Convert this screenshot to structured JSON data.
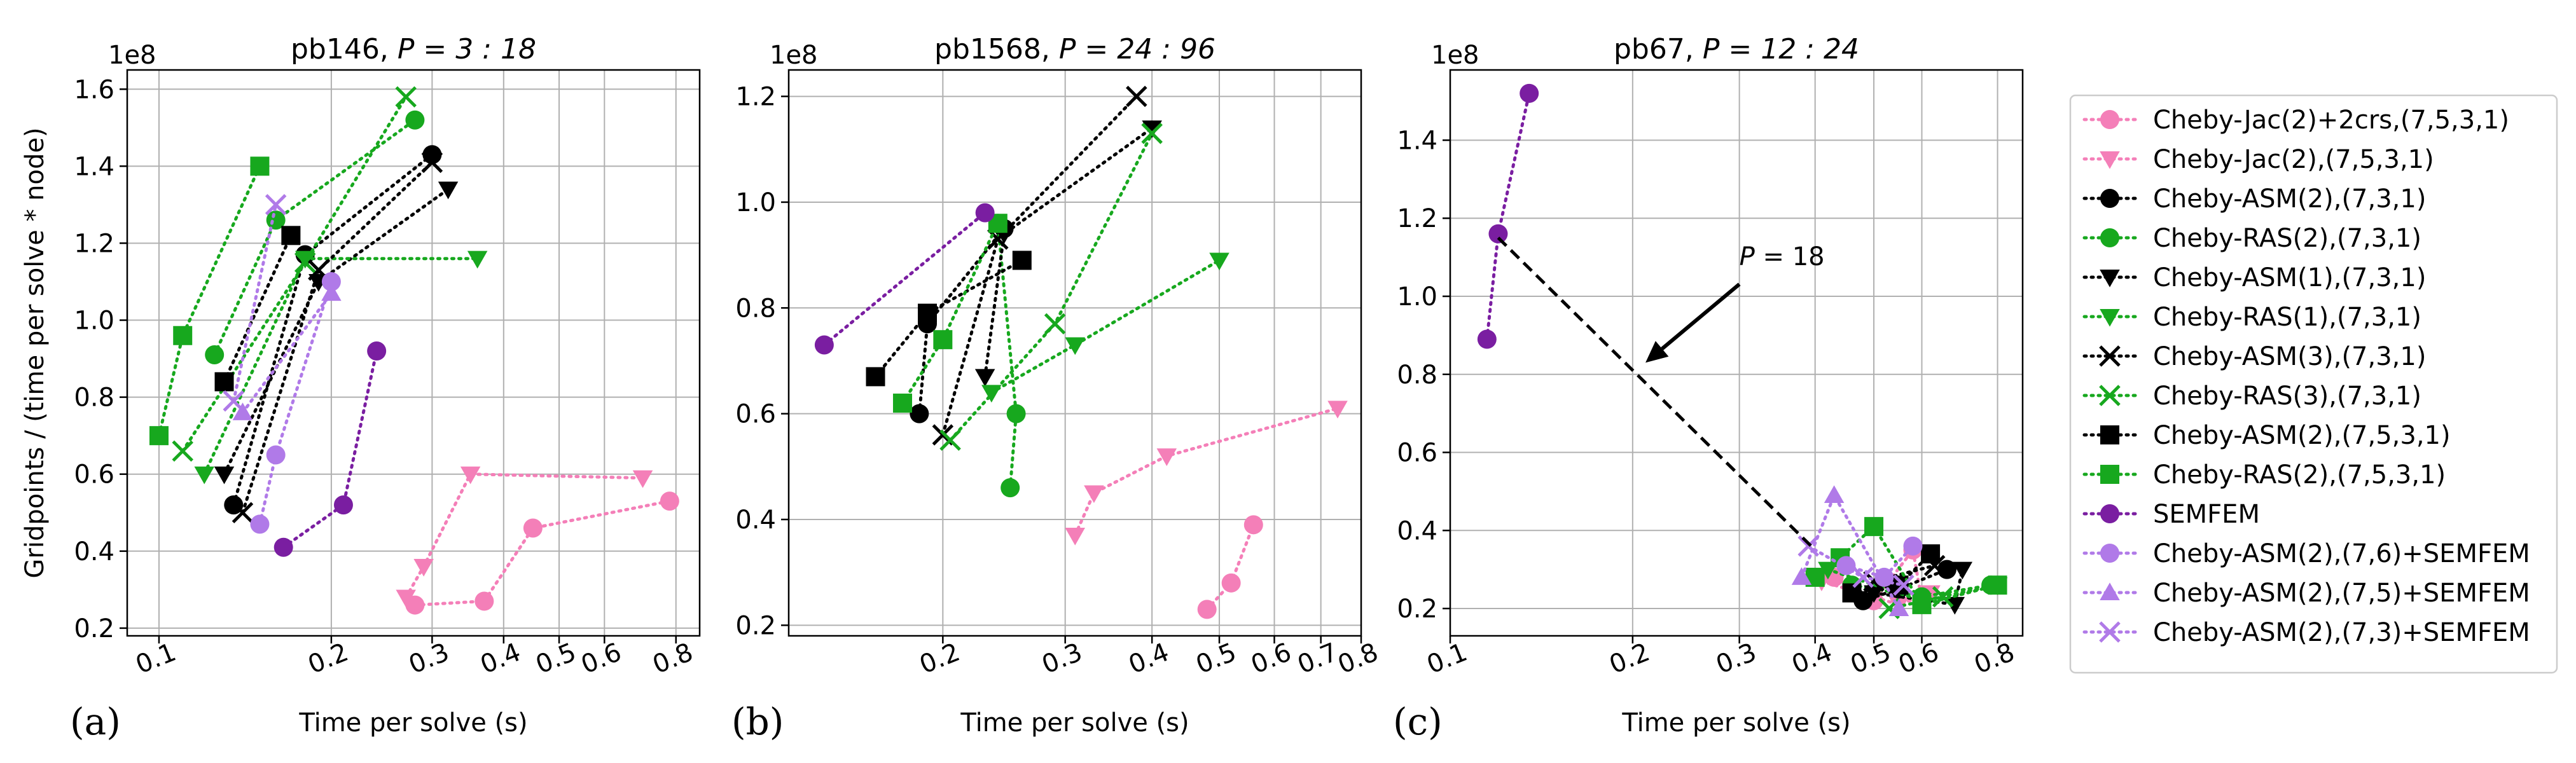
{
  "chart_data": [
    {
      "type": "scatter",
      "panel_tag": "(a)",
      "title": "pb146, P = 3 : 18",
      "title_main": "pb146, ",
      "title_math": "P = 3 : 18",
      "xlabel": "Time per solve (s)",
      "ylabel": "Gridpoints / (time per solve * node)",
      "y_multiplier": "1e8",
      "xscale": "log",
      "xlim": [
        0.088,
        0.88
      ],
      "ylim": [
        0.18,
        1.65
      ],
      "xticks": [
        {
          "value": 0.1,
          "label": "0.1"
        },
        {
          "value": 0.2,
          "label": "0.2"
        },
        {
          "value": 0.3,
          "label": "0.3"
        },
        {
          "value": 0.4,
          "label": "0.4"
        },
        {
          "value": 0.5,
          "label": "0.5"
        },
        {
          "value": 0.6,
          "label": "0.6"
        },
        {
          "value": 0.8,
          "label": "0.8"
        }
      ],
      "yticks": [
        {
          "value": 0.2,
          "label": "0.2"
        },
        {
          "value": 0.4,
          "label": "0.4"
        },
        {
          "value": 0.6,
          "label": "0.6"
        },
        {
          "value": 0.8,
          "label": "0.8"
        },
        {
          "value": 1.0,
          "label": "1.0"
        },
        {
          "value": 1.2,
          "label": "1.2"
        },
        {
          "value": 1.4,
          "label": "1.4"
        },
        {
          "value": 1.6,
          "label": "1.6"
        }
      ],
      "grid": true,
      "series": [
        {
          "key": "jac2crs",
          "points": [
            [
              0.28,
              0.26
            ],
            [
              0.37,
              0.27
            ],
            [
              0.45,
              0.46
            ],
            [
              0.78,
              0.53
            ]
          ]
        },
        {
          "key": "jac2",
          "points": [
            [
              0.27,
              0.28
            ],
            [
              0.29,
              0.36
            ],
            [
              0.35,
              0.6
            ],
            [
              0.7,
              0.59
            ]
          ]
        },
        {
          "key": "asm2_731",
          "points": [
            [
              0.135,
              0.52
            ],
            [
              0.18,
              1.17
            ],
            [
              0.3,
              1.43
            ]
          ]
        },
        {
          "key": "ras2_731",
          "points": [
            [
              0.125,
              0.91
            ],
            [
              0.16,
              1.26
            ],
            [
              0.28,
              1.52
            ]
          ]
        },
        {
          "key": "asm1_731",
          "points": [
            [
              0.13,
              0.6
            ],
            [
              0.19,
              1.1
            ],
            [
              0.32,
              1.34
            ]
          ]
        },
        {
          "key": "ras1_731",
          "points": [
            [
              0.12,
              0.6
            ],
            [
              0.18,
              1.16
            ],
            [
              0.36,
              1.16
            ]
          ]
        },
        {
          "key": "asm3_731",
          "points": [
            [
              0.14,
              0.5
            ],
            [
              0.19,
              1.13
            ],
            [
              0.3,
              1.41
            ]
          ]
        },
        {
          "key": "ras3_731",
          "points": [
            [
              0.11,
              0.66
            ],
            [
              0.18,
              1.15
            ],
            [
              0.27,
              1.58
            ]
          ]
        },
        {
          "key": "asm2_7531",
          "points": [
            [
              0.13,
              0.84
            ],
            [
              0.17,
              1.22
            ]
          ]
        },
        {
          "key": "ras2_7531",
          "points": [
            [
              0.1,
              0.7
            ],
            [
              0.11,
              0.96
            ],
            [
              0.15,
              1.4
            ]
          ]
        },
        {
          "key": "semfem",
          "points": [
            [
              0.165,
              0.41
            ],
            [
              0.21,
              0.52
            ],
            [
              0.24,
              0.92
            ]
          ]
        },
        {
          "key": "asm2_76_sem",
          "points": [
            [
              0.15,
              0.47
            ],
            [
              0.16,
              0.65
            ],
            [
              0.2,
              1.1
            ]
          ]
        },
        {
          "key": "asm2_75_sem",
          "points": [
            [
              0.14,
              0.76
            ],
            [
              0.2,
              1.07
            ]
          ]
        },
        {
          "key": "asm2_73_sem",
          "points": [
            [
              0.135,
              0.79
            ],
            [
              0.16,
              1.3
            ]
          ]
        }
      ]
    },
    {
      "type": "scatter",
      "panel_tag": "(b)",
      "title": "pb1568, P = 24 : 96",
      "title_main": "pb1568, ",
      "title_math": "P = 24 : 96",
      "xlabel": "Time per solve (s)",
      "ylabel": "",
      "y_multiplier": "1e8",
      "xscale": "log",
      "xlim": [
        0.12,
        0.8
      ],
      "ylim": [
        0.18,
        1.25
      ],
      "xticks": [
        {
          "value": 0.2,
          "label": "0.2"
        },
        {
          "value": 0.3,
          "label": "0.3"
        },
        {
          "value": 0.4,
          "label": "0.4"
        },
        {
          "value": 0.5,
          "label": "0.5"
        },
        {
          "value": 0.6,
          "label": "0.6"
        },
        {
          "value": 0.7,
          "label": "0.7"
        },
        {
          "value": 0.8,
          "label": "0.8"
        }
      ],
      "yticks": [
        {
          "value": 0.2,
          "label": "0.2"
        },
        {
          "value": 0.4,
          "label": "0.4"
        },
        {
          "value": 0.6,
          "label": "0.6"
        },
        {
          "value": 0.8,
          "label": "0.8"
        },
        {
          "value": 1.0,
          "label": "1.0"
        },
        {
          "value": 1.2,
          "label": "1.2"
        }
      ],
      "grid": true,
      "series": [
        {
          "key": "jac2crs",
          "points": [
            [
              0.48,
              0.23
            ],
            [
              0.52,
              0.28
            ],
            [
              0.56,
              0.39
            ]
          ]
        },
        {
          "key": "jac2",
          "points": [
            [
              0.31,
              0.37
            ],
            [
              0.33,
              0.45
            ],
            [
              0.42,
              0.52
            ],
            [
              0.74,
              0.61
            ]
          ]
        },
        {
          "key": "asm2_731",
          "points": [
            [
              0.185,
              0.6
            ],
            [
              0.19,
              0.77
            ],
            [
              0.245,
              0.95
            ]
          ]
        },
        {
          "key": "ras2_731",
          "points": [
            [
              0.25,
              0.46
            ],
            [
              0.255,
              0.6
            ],
            [
              0.24,
              0.96
            ]
          ]
        },
        {
          "key": "asm1_731",
          "points": [
            [
              0.23,
              0.67
            ],
            [
              0.245,
              0.94
            ],
            [
              0.4,
              1.14
            ]
          ]
        },
        {
          "key": "ras1_731",
          "points": [
            [
              0.235,
              0.64
            ],
            [
              0.31,
              0.73
            ],
            [
              0.5,
              0.89
            ]
          ]
        },
        {
          "key": "asm3_731",
          "points": [
            [
              0.2,
              0.56
            ],
            [
              0.24,
              0.93
            ],
            [
              0.38,
              1.2
            ]
          ]
        },
        {
          "key": "ras3_731",
          "points": [
            [
              0.205,
              0.55
            ],
            [
              0.29,
              0.77
            ],
            [
              0.4,
              1.13
            ]
          ]
        },
        {
          "key": "asm2_7531",
          "points": [
            [
              0.16,
              0.67
            ],
            [
              0.19,
              0.79
            ],
            [
              0.26,
              0.89
            ]
          ]
        },
        {
          "key": "ras2_7531",
          "points": [
            [
              0.175,
              0.62
            ],
            [
              0.2,
              0.74
            ],
            [
              0.24,
              0.96
            ]
          ]
        },
        {
          "key": "semfem",
          "points": [
            [
              0.135,
              0.73
            ],
            [
              0.23,
              0.98
            ]
          ]
        },
        {
          "key": "asm2_76_sem",
          "points": []
        },
        {
          "key": "asm2_75_sem",
          "points": []
        },
        {
          "key": "asm2_73_sem",
          "points": []
        }
      ]
    },
    {
      "type": "scatter",
      "panel_tag": "(c)",
      "title": "pb67, P = 12 : 24",
      "title_main": "pb67, ",
      "title_math": "P = 12 : 24",
      "xlabel": "Time per solve (s)",
      "ylabel": "",
      "y_multiplier": "1e8",
      "xscale": "log",
      "xlim": [
        0.1,
        0.88
      ],
      "ylim": [
        0.13,
        1.58
      ],
      "xticks": [
        {
          "value": 0.1,
          "label": "0.1"
        },
        {
          "value": 0.2,
          "label": "0.2"
        },
        {
          "value": 0.3,
          "label": "0.3"
        },
        {
          "value": 0.4,
          "label": "0.4"
        },
        {
          "value": 0.5,
          "label": "0.5"
        },
        {
          "value": 0.6,
          "label": "0.6"
        },
        {
          "value": 0.8,
          "label": "0.8"
        }
      ],
      "yticks": [
        {
          "value": 0.2,
          "label": "0.2"
        },
        {
          "value": 0.4,
          "label": "0.4"
        },
        {
          "value": 0.6,
          "label": "0.6"
        },
        {
          "value": 0.8,
          "label": "0.8"
        },
        {
          "value": 1.0,
          "label": "1.0"
        },
        {
          "value": 1.2,
          "label": "1.2"
        },
        {
          "value": 1.4,
          "label": "1.4"
        }
      ],
      "grid": true,
      "annotation": {
        "text_main": "P",
        "text_rest": " = 18",
        "text_xy": [
          0.3,
          1.08
        ],
        "arrow_to": [
          0.21,
          0.83
        ],
        "dashed_line": [
          [
            0.12,
            1.15
          ],
          [
            0.4,
            0.35
          ]
        ]
      },
      "series": [
        {
          "key": "jac2crs",
          "points": [
            [
              0.43,
              0.28
            ],
            [
              0.5,
              0.22
            ],
            [
              0.58,
              0.35
            ],
            [
              0.6,
              0.22
            ]
          ]
        },
        {
          "key": "jac2",
          "points": [
            [
              0.41,
              0.27
            ],
            [
              0.55,
              0.21
            ],
            [
              0.62,
              0.24
            ]
          ]
        },
        {
          "key": "asm2_731",
          "points": [
            [
              0.48,
              0.22
            ],
            [
              0.55,
              0.25
            ],
            [
              0.66,
              0.3
            ]
          ]
        },
        {
          "key": "ras2_731",
          "points": [
            [
              0.46,
              0.26
            ],
            [
              0.6,
              0.23
            ],
            [
              0.78,
              0.26
            ]
          ]
        },
        {
          "key": "asm1_731",
          "points": [
            [
              0.5,
              0.24
            ],
            [
              0.68,
              0.21
            ],
            [
              0.7,
              0.3
            ]
          ]
        },
        {
          "key": "ras1_731",
          "points": [
            [
              0.42,
              0.3
            ],
            [
              0.6,
              0.22
            ],
            [
              0.8,
              0.26
            ]
          ]
        },
        {
          "key": "asm3_731",
          "points": [
            [
              0.5,
              0.27
            ],
            [
              0.63,
              0.31
            ]
          ]
        },
        {
          "key": "ras3_731",
          "points": [
            [
              0.53,
              0.2
            ],
            [
              0.65,
              0.23
            ]
          ]
        },
        {
          "key": "asm2_7531",
          "points": [
            [
              0.46,
              0.24
            ],
            [
              0.55,
              0.26
            ],
            [
              0.62,
              0.34
            ]
          ]
        },
        {
          "key": "ras2_7531",
          "points": [
            [
              0.4,
              0.28
            ],
            [
              0.44,
              0.33
            ],
            [
              0.5,
              0.41
            ],
            [
              0.6,
              0.21
            ],
            [
              0.8,
              0.26
            ]
          ]
        },
        {
          "key": "semfem",
          "points": [
            [
              0.115,
              0.89
            ],
            [
              0.12,
              1.16
            ],
            [
              0.135,
              1.52
            ]
          ]
        },
        {
          "key": "asm2_76_sem",
          "points": [
            [
              0.45,
              0.31
            ],
            [
              0.52,
              0.28
            ],
            [
              0.58,
              0.36
            ]
          ]
        },
        {
          "key": "asm2_75_sem",
          "points": [
            [
              0.38,
              0.28
            ],
            [
              0.43,
              0.49
            ],
            [
              0.55,
              0.2
            ]
          ]
        },
        {
          "key": "asm2_73_sem",
          "points": [
            [
              0.39,
              0.36
            ],
            [
              0.48,
              0.28
            ],
            [
              0.56,
              0.26
            ]
          ]
        }
      ]
    }
  ],
  "legend": {
    "placement": "right",
    "entries": [
      {
        "key": "jac2crs",
        "label": "Cheby-Jac(2)+2crs,(7,5,3,1)",
        "color": "#f47fb8",
        "marker": "circle"
      },
      {
        "key": "jac2",
        "label": "Cheby-Jac(2),(7,5,3,1)",
        "color": "#f47fb8",
        "marker": "triangle-down"
      },
      {
        "key": "asm2_731",
        "label": "Cheby-ASM(2),(7,3,1)",
        "color": "#000000",
        "marker": "circle"
      },
      {
        "key": "ras2_731",
        "label": "Cheby-RAS(2),(7,3,1)",
        "color": "#17a81e",
        "marker": "circle"
      },
      {
        "key": "asm1_731",
        "label": "Cheby-ASM(1),(7,3,1)",
        "color": "#000000",
        "marker": "triangle-down"
      },
      {
        "key": "ras1_731",
        "label": "Cheby-RAS(1),(7,3,1)",
        "color": "#17a81e",
        "marker": "triangle-down"
      },
      {
        "key": "asm3_731",
        "label": "Cheby-ASM(3),(7,3,1)",
        "color": "#000000",
        "marker": "x"
      },
      {
        "key": "ras3_731",
        "label": "Cheby-RAS(3),(7,3,1)",
        "color": "#17a81e",
        "marker": "x"
      },
      {
        "key": "asm2_7531",
        "label": "Cheby-ASM(2),(7,5,3,1)",
        "color": "#000000",
        "marker": "square"
      },
      {
        "key": "ras2_7531",
        "label": "Cheby-RAS(2),(7,5,3,1)",
        "color": "#17a81e",
        "marker": "square"
      },
      {
        "key": "semfem",
        "label": "SEMFEM",
        "color": "#7a1ea1",
        "marker": "circle"
      },
      {
        "key": "asm2_76_sem",
        "label": "Cheby-ASM(2),(7,6)+SEMFEM",
        "color": "#b07ae8",
        "marker": "circle"
      },
      {
        "key": "asm2_75_sem",
        "label": "Cheby-ASM(2),(7,5)+SEMFEM",
        "color": "#b07ae8",
        "marker": "triangle-up"
      },
      {
        "key": "asm2_73_sem",
        "label": "Cheby-ASM(2),(7,3)+SEMFEM",
        "color": "#b07ae8",
        "marker": "x"
      }
    ]
  }
}
